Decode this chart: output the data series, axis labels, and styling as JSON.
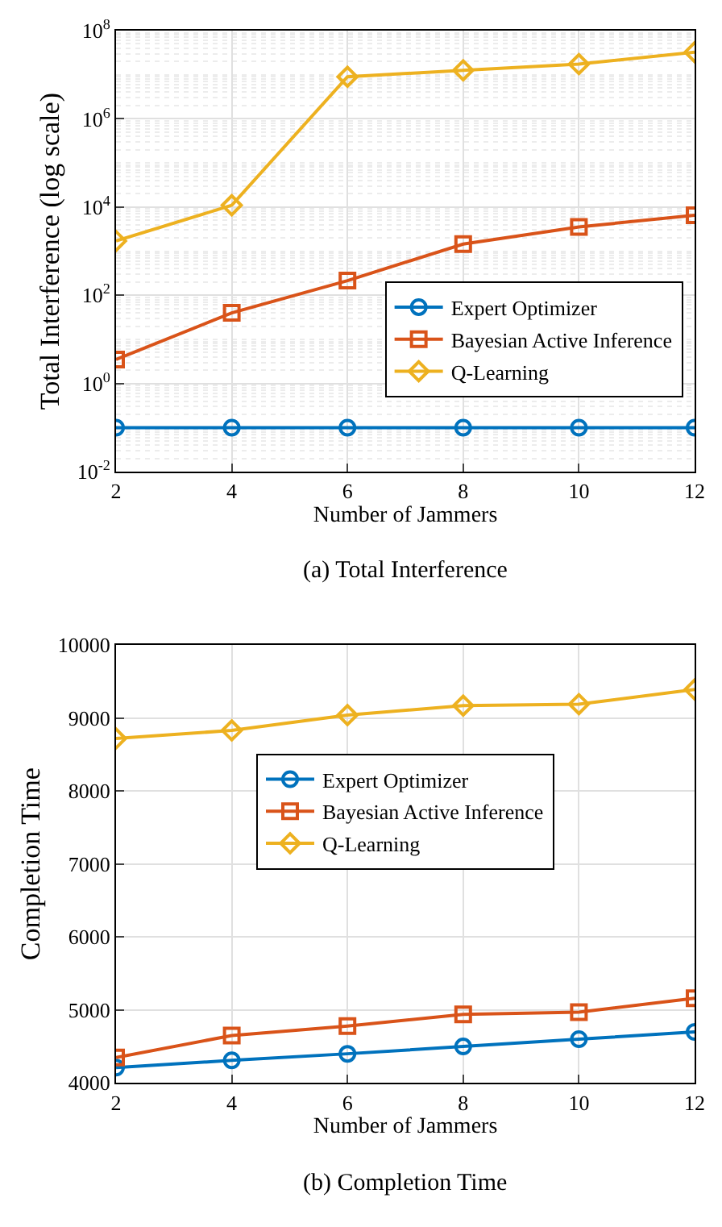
{
  "chart_data": [
    {
      "type": "line",
      "title": "(a) Total Interference",
      "xlabel": "Number of Jammers",
      "ylabel": "Total Interference (log scale)",
      "x": [
        2,
        4,
        6,
        8,
        10,
        12
      ],
      "xlim": [
        2,
        12
      ],
      "xticks": [
        2,
        4,
        6,
        8,
        10,
        12
      ],
      "log": "y",
      "ylim": [
        0.01,
        100000000
      ],
      "yticks": [
        {
          "value": 0.01,
          "label": "10$^{-2}$"
        },
        {
          "value": 1,
          "label": "10$^{0}$"
        },
        {
          "value": 100,
          "label": "10$^{2}$"
        },
        {
          "value": 10000,
          "label": "10$^{4}$"
        },
        {
          "value": 1000000,
          "label": "10$^{6}$"
        },
        {
          "value": 100000000,
          "label": "10$^{8}$"
        }
      ],
      "grid": true,
      "legend": "right",
      "series": [
        {
          "name": "Expert Optimizer",
          "color": "#0072bd",
          "marker": "circle",
          "values": [
            0.1,
            0.1,
            0.1,
            0.1,
            0.1,
            0.1
          ]
        },
        {
          "name": "Bayesian Active Inference",
          "color": "#d95319",
          "marker": "square",
          "values": [
            3.5,
            40,
            215,
            1450,
            3550,
            6500
          ]
        },
        {
          "name": "Q-Learning",
          "color": "#edb120",
          "marker": "diamond",
          "values": [
            1700,
            11000,
            9000000,
            12600000,
            17400000,
            32500000
          ]
        }
      ]
    },
    {
      "type": "line",
      "title": "(b) Completion Time",
      "xlabel": "Number of Jammers",
      "ylabel": "Completion Time",
      "x": [
        2,
        4,
        6,
        8,
        10,
        12
      ],
      "xlim": [
        2,
        12
      ],
      "xticks": [
        2,
        4,
        6,
        8,
        10,
        12
      ],
      "ylim": [
        4000,
        10000
      ],
      "yticks": [
        4000,
        5000,
        6000,
        7000,
        8000,
        9000,
        10000
      ],
      "grid": true,
      "legend": "center",
      "series": [
        {
          "name": "Expert Optimizer",
          "color": "#0072bd",
          "marker": "circle",
          "values": [
            4210,
            4310,
            4400,
            4500,
            4600,
            4700
          ]
        },
        {
          "name": "Bayesian Active Inference",
          "color": "#d95319",
          "marker": "square",
          "values": [
            4350,
            4650,
            4780,
            4940,
            4970,
            5160
          ]
        },
        {
          "name": "Q-Learning",
          "color": "#edb120",
          "marker": "diamond",
          "values": [
            8720,
            8830,
            9040,
            9170,
            9190,
            9390
          ]
        }
      ]
    }
  ]
}
